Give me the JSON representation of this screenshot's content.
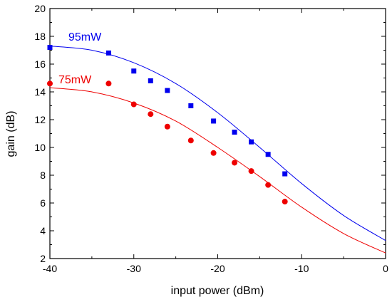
{
  "chart_data": {
    "type": "scatter",
    "title": "",
    "xlabel": "input power (dBm)",
    "ylabel": "gain (dB)",
    "xlim": [
      -40,
      0
    ],
    "ylim": [
      2,
      20
    ],
    "xticks": [
      -40,
      -30,
      -20,
      -10,
      0
    ],
    "yticks": [
      2,
      4,
      6,
      8,
      10,
      12,
      14,
      16,
      18,
      20
    ],
    "grid": false,
    "series": [
      {
        "name": "95mW",
        "color": "#0000ee",
        "marker": "square",
        "points": [
          [
            -40,
            17.2
          ],
          [
            -33,
            16.8
          ],
          [
            -30,
            15.5
          ],
          [
            -28,
            14.8
          ],
          [
            -26,
            14.1
          ],
          [
            -23.2,
            13.0
          ],
          [
            -20.5,
            11.9
          ],
          [
            -18,
            11.1
          ],
          [
            -16,
            10.4
          ],
          [
            -14,
            9.5
          ],
          [
            -12,
            8.1
          ]
        ],
        "fit": [
          [
            -40,
            17.3
          ],
          [
            -35,
            17.0
          ],
          [
            -30,
            16.1
          ],
          [
            -25,
            14.6
          ],
          [
            -20,
            12.5
          ],
          [
            -15,
            10.0
          ],
          [
            -10,
            7.4
          ],
          [
            -5,
            5.1
          ],
          [
            0,
            3.3
          ]
        ]
      },
      {
        "name": "75mW",
        "color": "#ee0000",
        "marker": "circle",
        "points": [
          [
            -40,
            14.6
          ],
          [
            -33,
            14.6
          ],
          [
            -30,
            13.1
          ],
          [
            -28,
            12.4
          ],
          [
            -26,
            11.5
          ],
          [
            -23.2,
            10.5
          ],
          [
            -20.5,
            9.6
          ],
          [
            -18,
            8.9
          ],
          [
            -16,
            8.3
          ],
          [
            -14,
            7.3
          ],
          [
            -12,
            6.1
          ]
        ],
        "fit": [
          [
            -40,
            14.3
          ],
          [
            -35,
            14.0
          ],
          [
            -30,
            13.2
          ],
          [
            -25,
            11.9
          ],
          [
            -20,
            10.0
          ],
          [
            -15,
            7.9
          ],
          [
            -10,
            5.7
          ],
          [
            -5,
            3.8
          ],
          [
            0,
            2.4
          ]
        ]
      }
    ]
  }
}
